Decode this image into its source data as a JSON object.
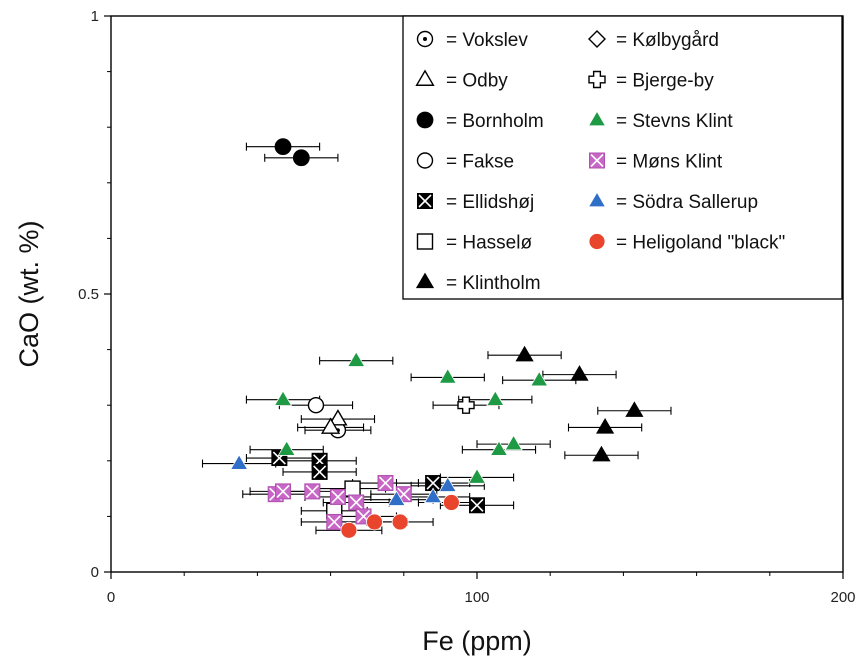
{
  "chart_data": {
    "type": "scatter",
    "title": "",
    "xlabel": "Fe (ppm)",
    "ylabel": "CaO (wt. %)",
    "xlim": [
      0,
      200
    ],
    "ylim": [
      0,
      1
    ],
    "xticks": [
      0,
      100,
      200
    ],
    "yticks": [
      0,
      0.5,
      1
    ],
    "xtick_labels": [
      "0",
      "100",
      "200"
    ],
    "ytick_labels": [
      "0",
      "0.5",
      "1"
    ],
    "grid": false,
    "legend_position": "top-right",
    "series": [
      {
        "name": "Vokslev",
        "marker": "dot-circle",
        "color": "#000000",
        "points": [
          {
            "x": 62,
            "y": 0.255,
            "xerr": 9
          }
        ]
      },
      {
        "name": "Odby",
        "marker": "open-triangle",
        "color": "#000000",
        "points": [
          {
            "x": 62,
            "y": 0.275,
            "xerr": 10
          },
          {
            "x": 60,
            "y": 0.26,
            "xerr": 9
          }
        ]
      },
      {
        "name": "Bornholm",
        "marker": "filled-circle",
        "color": "#000000",
        "points": [
          {
            "x": 47,
            "y": 0.765,
            "xerr": 10
          },
          {
            "x": 52,
            "y": 0.745,
            "xerr": 10
          }
        ]
      },
      {
        "name": "Fakse",
        "marker": "open-circle",
        "color": "#000000",
        "points": [
          {
            "x": 56,
            "y": 0.3,
            "xerr": 10
          }
        ]
      },
      {
        "name": "Ellidshøj",
        "marker": "x-box",
        "color": "#000000",
        "points": [
          {
            "x": 46,
            "y": 0.205,
            "xerr": 9
          },
          {
            "x": 57,
            "y": 0.2,
            "xerr": 10
          },
          {
            "x": 57,
            "y": 0.18,
            "xerr": 10
          },
          {
            "x": 88,
            "y": 0.16,
            "xerr": 10
          },
          {
            "x": 100,
            "y": 0.12,
            "xerr": 10
          }
        ]
      },
      {
        "name": "Hasselø",
        "marker": "open-square",
        "color": "#000000",
        "points": [
          {
            "x": 66,
            "y": 0.15,
            "xerr": 9
          },
          {
            "x": 61,
            "y": 0.11,
            "xerr": 9
          }
        ]
      },
      {
        "name": "Klintholm",
        "marker": "filled-triangle",
        "color": "#000000",
        "points": [
          {
            "x": 113,
            "y": 0.39,
            "xerr": 10
          },
          {
            "x": 128,
            "y": 0.355,
            "xerr": 10
          },
          {
            "x": 143,
            "y": 0.29,
            "xerr": 10
          },
          {
            "x": 135,
            "y": 0.26,
            "xerr": 10
          },
          {
            "x": 134,
            "y": 0.21,
            "xerr": 10
          }
        ]
      },
      {
        "name": "Kølbygård",
        "marker": "open-diamond",
        "color": "#000000",
        "points": []
      },
      {
        "name": "Bjerge-by",
        "marker": "open-cross",
        "color": "#000000",
        "points": [
          {
            "x": 97,
            "y": 0.3,
            "xerr": 9
          }
        ]
      },
      {
        "name": "Stevns Klint",
        "marker": "filled-triangle",
        "color": "#1e9a44",
        "points": [
          {
            "x": 67,
            "y": 0.38,
            "xerr": 10
          },
          {
            "x": 92,
            "y": 0.35,
            "xerr": 10
          },
          {
            "x": 117,
            "y": 0.345,
            "xerr": 10
          },
          {
            "x": 47,
            "y": 0.31,
            "xerr": 10
          },
          {
            "x": 105,
            "y": 0.31,
            "xerr": 10
          },
          {
            "x": 48,
            "y": 0.22,
            "xerr": 10
          },
          {
            "x": 106,
            "y": 0.22,
            "xerr": 10
          },
          {
            "x": 110,
            "y": 0.23,
            "xerr": 10
          },
          {
            "x": 100,
            "y": 0.17,
            "xerr": 10
          }
        ]
      },
      {
        "name": "Møns Klint",
        "marker": "x-box",
        "color": "#c866c8",
        "points": [
          {
            "x": 45,
            "y": 0.14,
            "xerr": 9
          },
          {
            "x": 47,
            "y": 0.145,
            "xerr": 9
          },
          {
            "x": 55,
            "y": 0.145,
            "xerr": 9
          },
          {
            "x": 62,
            "y": 0.135,
            "xerr": 9
          },
          {
            "x": 67,
            "y": 0.125,
            "xerr": 9
          },
          {
            "x": 69,
            "y": 0.1,
            "xerr": 9
          },
          {
            "x": 75,
            "y": 0.16,
            "xerr": 9
          },
          {
            "x": 80,
            "y": 0.14,
            "xerr": 9
          },
          {
            "x": 61,
            "y": 0.09,
            "xerr": 9
          }
        ]
      },
      {
        "name": "Södra Sallerup",
        "marker": "filled-triangle",
        "color": "#2f6fc7",
        "points": [
          {
            "x": 35,
            "y": 0.195,
            "xerr": 10
          },
          {
            "x": 78,
            "y": 0.13,
            "xerr": 10
          },
          {
            "x": 88,
            "y": 0.135,
            "xerr": 10
          },
          {
            "x": 92,
            "y": 0.155,
            "xerr": 10
          }
        ]
      },
      {
        "name": "Heligoland \"black\"",
        "marker": "filled-circle",
        "color": "#e8452c",
        "points": [
          {
            "x": 65,
            "y": 0.075,
            "xerr": 9
          },
          {
            "x": 72,
            "y": 0.09,
            "xerr": 9
          },
          {
            "x": 79,
            "y": 0.09,
            "xerr": 9
          },
          {
            "x": 93,
            "y": 0.125,
            "xerr": 9
          }
        ]
      }
    ],
    "legend": {
      "left_column": [
        {
          "label": "= Vokslev",
          "marker": "dot-circle",
          "color": "#000000"
        },
        {
          "label": "= Odby",
          "marker": "open-triangle",
          "color": "#000000"
        },
        {
          "label": "= Bornholm",
          "marker": "filled-circle",
          "color": "#000000"
        },
        {
          "label": "= Fakse",
          "marker": "open-circle",
          "color": "#000000"
        },
        {
          "label": "= Ellidshøj",
          "marker": "x-box",
          "color": "#000000"
        },
        {
          "label": "= Hasselø",
          "marker": "open-square",
          "color": "#000000"
        },
        {
          "label": "= Klintholm",
          "marker": "filled-triangle",
          "color": "#000000"
        }
      ],
      "right_column": [
        {
          "label": "= Kølbygård",
          "marker": "open-diamond",
          "color": "#000000"
        },
        {
          "label": "= Bjerge-by",
          "marker": "open-cross",
          "color": "#000000"
        },
        {
          "label": "= Stevns Klint",
          "marker": "filled-triangle",
          "color": "#1e9a44"
        },
        {
          "label": "= Møns Klint",
          "marker": "x-box",
          "color": "#c866c8"
        },
        {
          "label": "= Södra Sallerup",
          "marker": "filled-triangle",
          "color": "#2f6fc7"
        },
        {
          "label": "= Heligoland \"black\"",
          "marker": "filled-circle",
          "color": "#e8452c"
        }
      ]
    }
  }
}
